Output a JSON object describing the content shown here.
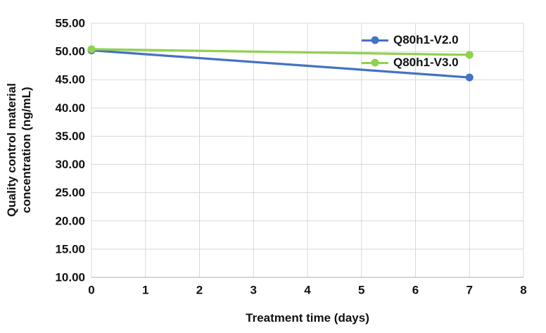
{
  "chart_data": {
    "type": "line",
    "title": "",
    "xlabel": "Treatment time (days)",
    "ylabel": "Quality control material concentration (ng/mL)",
    "ylabel_lines": [
      "Quality control material",
      "concentration (ng/mL)"
    ],
    "x": [
      0,
      7
    ],
    "series": [
      {
        "name": "Q80h1-V2.0",
        "color": "#4472C4",
        "values": [
          50.2,
          45.4
        ]
      },
      {
        "name": "Q80h1-V3.0",
        "color": "#92D050",
        "values": [
          50.4,
          49.4
        ]
      }
    ],
    "xlim": [
      0,
      8
    ],
    "ylim": [
      10,
      55
    ],
    "x_ticks": [
      "0",
      "1",
      "2",
      "3",
      "4",
      "5",
      "6",
      "7",
      "8"
    ],
    "y_ticks": [
      "10.00",
      "15.00",
      "20.00",
      "25.00",
      "30.00",
      "35.00",
      "40.00",
      "45.00",
      "50.00",
      "55.00"
    ],
    "y_tick_step": 5,
    "x_tick_step": 1,
    "grid": true,
    "legend_position": "inside-top-right",
    "colors": {
      "gridline": "#D9D9D9",
      "axis_line": "#BFBFBF",
      "text": "#111111",
      "background": "#FFFFFF"
    }
  }
}
